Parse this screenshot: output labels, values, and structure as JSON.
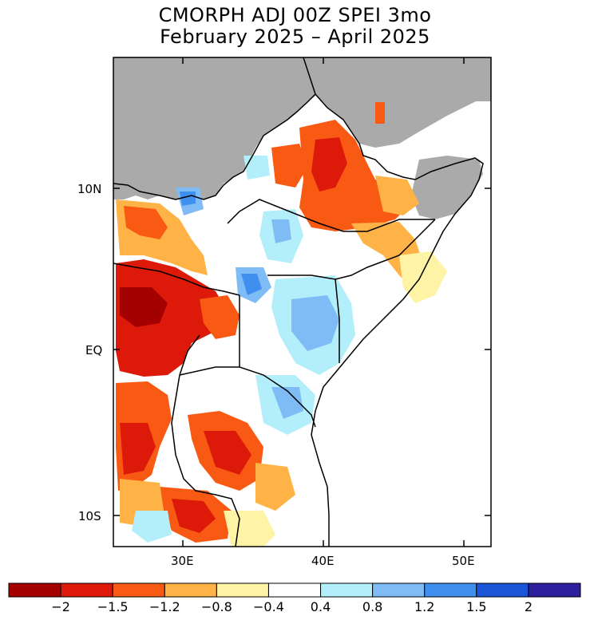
{
  "title_lines": [
    "CMORPH ADJ 00Z SPEI 3mo",
    "February 2025 – April 2025"
  ],
  "lat_ticks": [
    "10N",
    "EQ",
    "10S"
  ],
  "lon_ticks": [
    "30E",
    "40E",
    "50E"
  ],
  "colorbar": {
    "colors": [
      "#a50000",
      "#dd1a0a",
      "#f85a14",
      "#ffb347",
      "#fff3a6",
      "#ffffff",
      "#b3effa",
      "#7fbcf5",
      "#3f8fef",
      "#1a55d8",
      "#2e1f9e"
    ],
    "labels": [
      "−2",
      "−1.5",
      "−1.2",
      "−0.8",
      "−0.4",
      "0.4",
      "0.8",
      "1.2",
      "1.5",
      "2"
    ]
  },
  "map_colors": {
    "ocean_mask": "#aaaaaa",
    "boundary": "#000000"
  }
}
